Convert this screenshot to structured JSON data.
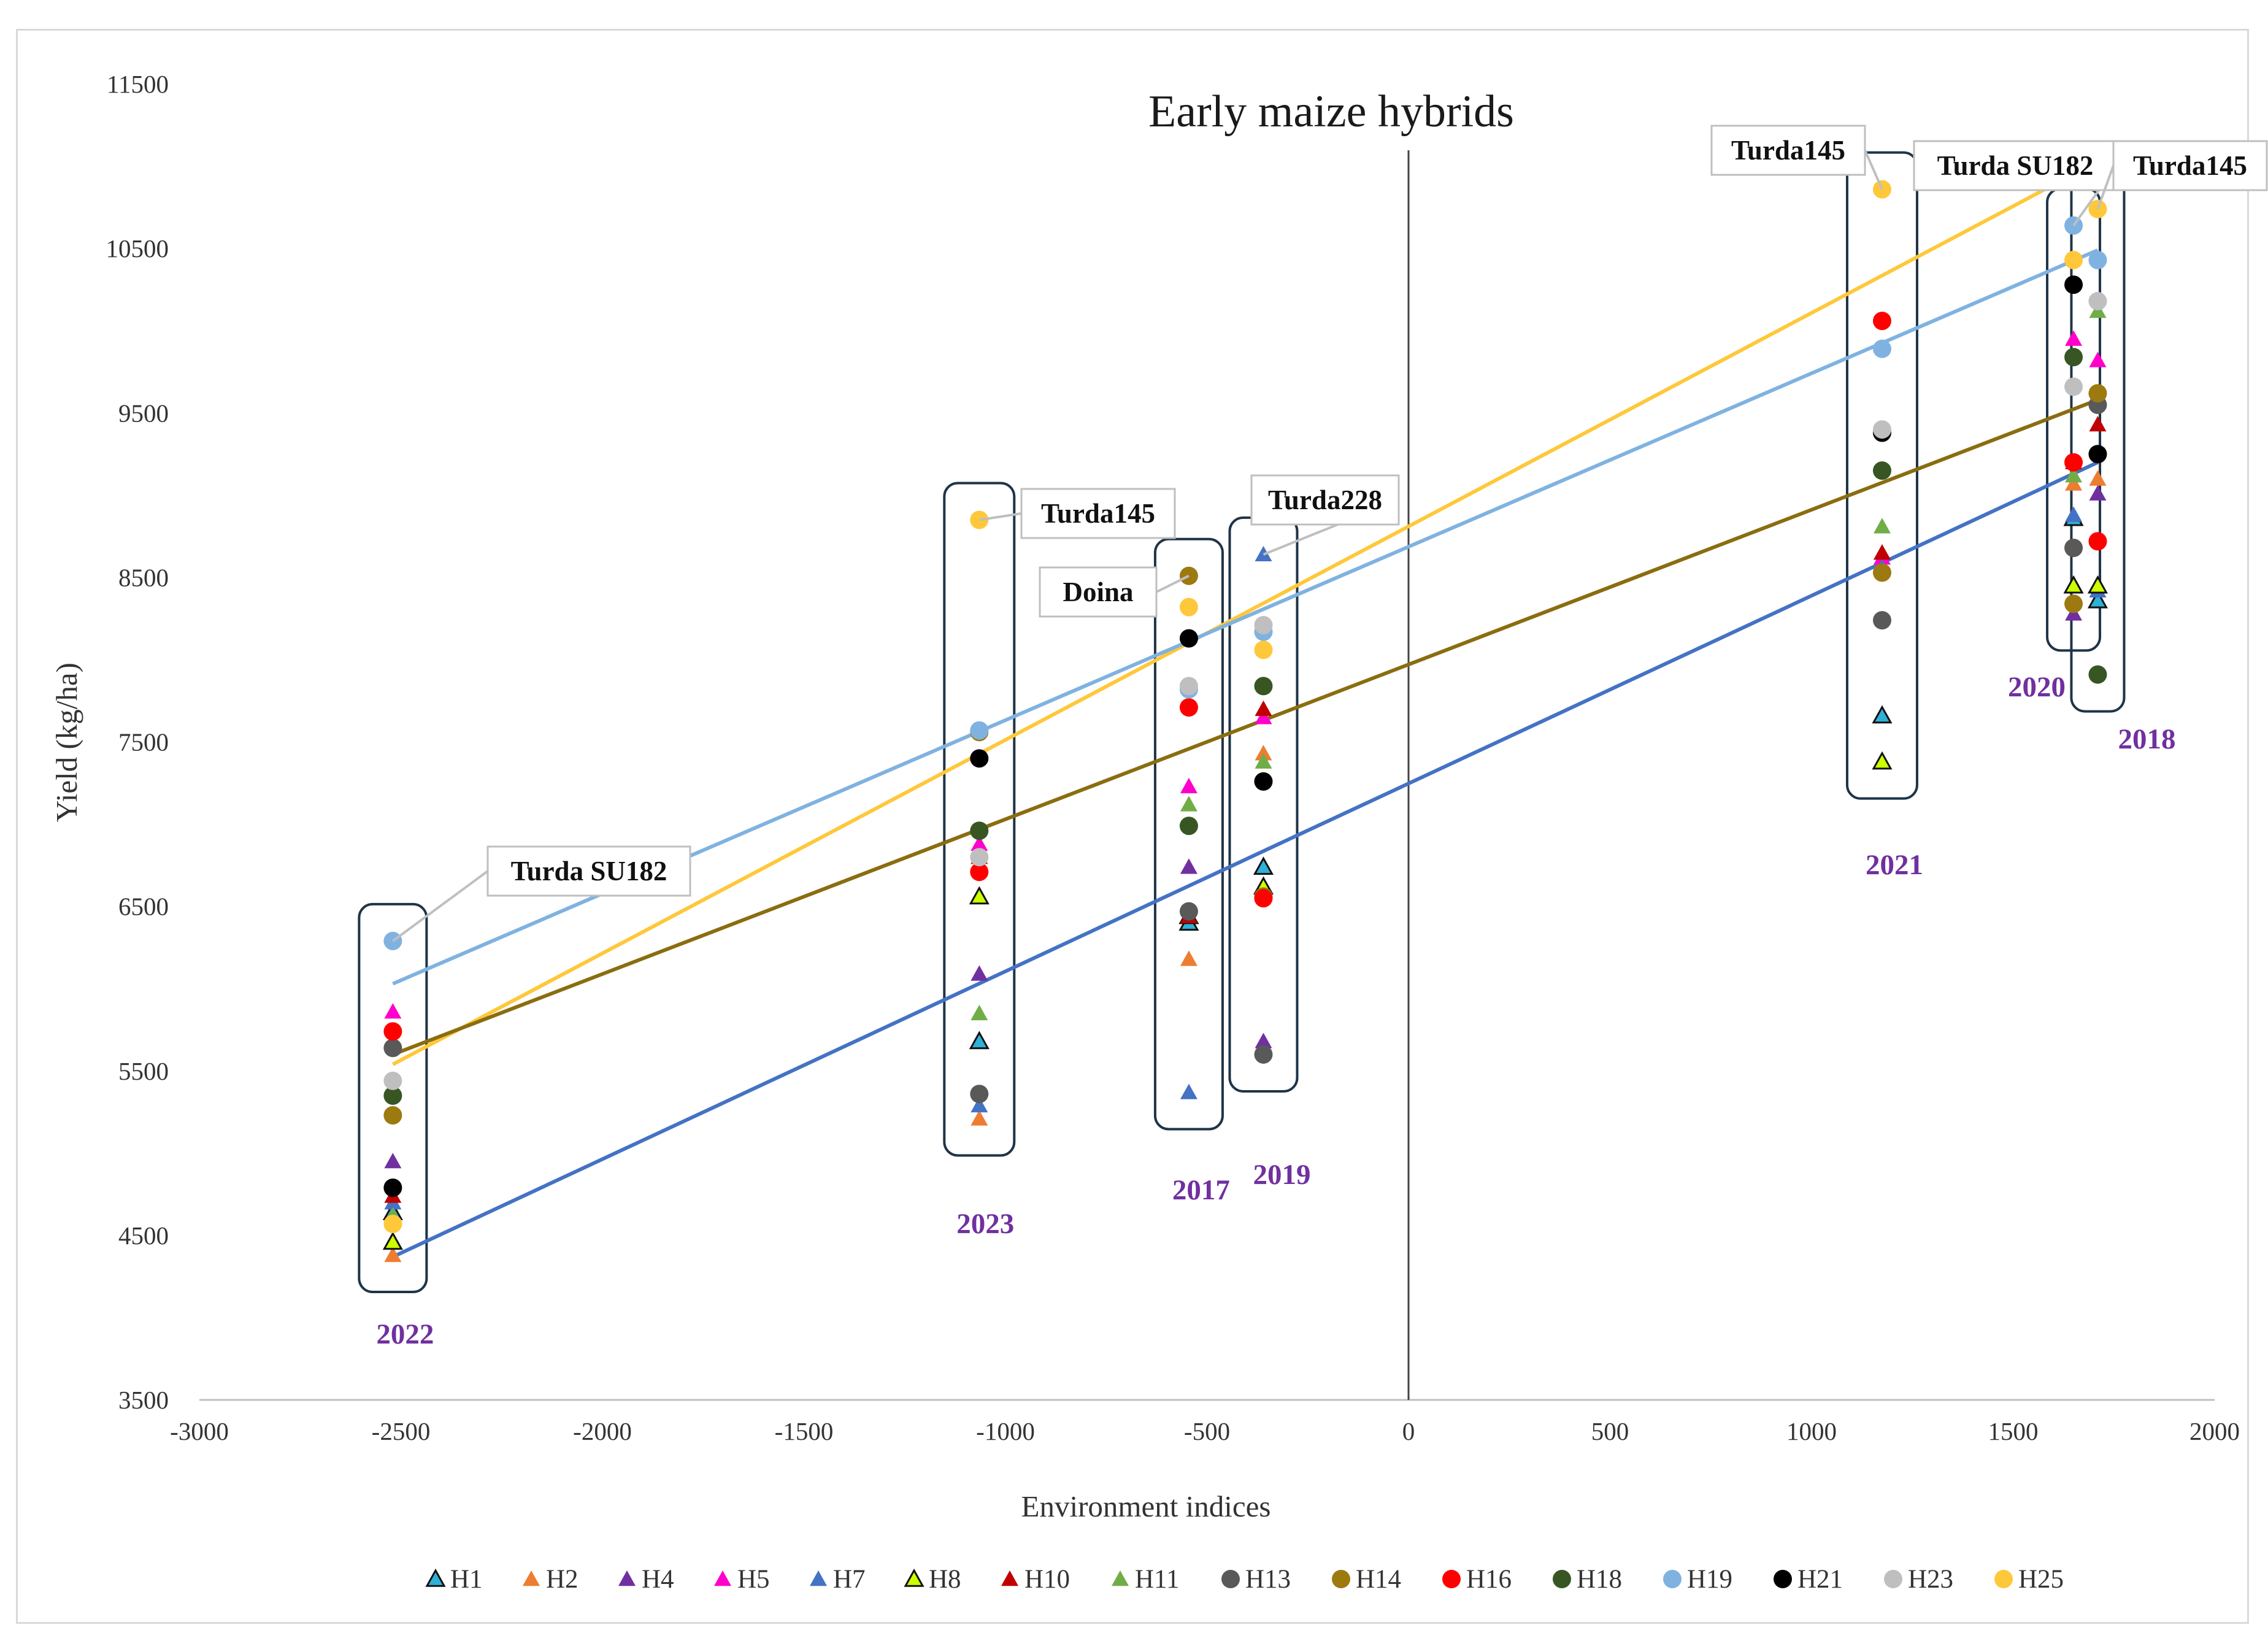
{
  "chart_data": {
    "type": "scatter",
    "title": "Early maize hybrids",
    "xlabel": "Environment indices",
    "ylabel": "Yield (kg/ha)",
    "xlim": [
      -3000,
      2000
    ],
    "ylim": [
      3500,
      11500
    ],
    "x_ticks": [
      -3000,
      -2500,
      -2000,
      -1500,
      -1000,
      -500,
      0,
      500,
      1000,
      1500,
      2000
    ],
    "y_ticks": [
      3500,
      4500,
      5500,
      6500,
      7500,
      8500,
      9500,
      10500,
      11500
    ],
    "grid": false,
    "legend_position": "bottom",
    "environments": [
      {
        "year": "2022",
        "x": -2520
      },
      {
        "year": "2023",
        "x": -1065
      },
      {
        "year": "2017",
        "x": -545
      },
      {
        "year": "2019",
        "x": -360
      },
      {
        "year": "2021",
        "x": 1175
      },
      {
        "year": "2020",
        "x": 1650
      },
      {
        "year": "2018",
        "x": 1710
      }
    ],
    "series": [
      {
        "name": "H1",
        "marker": "triangle-outline",
        "color": "#2eb0d8",
        "values": [
          4640,
          5680,
          6400,
          6740,
          7660,
          8860,
          8360
        ]
      },
      {
        "name": "H2",
        "marker": "triangle",
        "color": "#ed7d31",
        "values": [
          4380,
          5210,
          6180,
          7430,
          8570,
          9070,
          9100
        ]
      },
      {
        "name": "H4",
        "marker": "triangle",
        "color": "#7030a0",
        "values": [
          4950,
          6090,
          6740,
          5680,
          8650,
          8280,
          9010
        ]
      },
      {
        "name": "H5",
        "marker": "triangle",
        "color": "#ff00cc",
        "values": [
          5860,
          6880,
          7230,
          7650,
          8620,
          9950,
          9820
        ]
      },
      {
        "name": "H7",
        "marker": "triangle",
        "color": "#4472c4",
        "values": [
          4700,
          5290,
          5370,
          8640,
          8560,
          8880,
          8420
        ]
      },
      {
        "name": "H8",
        "marker": "triangle-outline",
        "color": "#ccff00",
        "values": [
          4460,
          6560,
          6440,
          6620,
          7380,
          8450,
          8450
        ]
      },
      {
        "name": "H10",
        "marker": "triangle",
        "color": "#c00000",
        "values": [
          4740,
          6800,
          6440,
          7700,
          8650,
          9200,
          9430
        ]
      },
      {
        "name": "H11",
        "marker": "triangle",
        "color": "#70ad47",
        "values": [
          4620,
          5850,
          7120,
          7380,
          8810,
          9120,
          10120
        ]
      },
      {
        "name": "H13",
        "marker": "circle",
        "color": "#595959",
        "values": [
          5640,
          5360,
          6470,
          5600,
          8240,
          8680,
          9550
        ]
      },
      {
        "name": "H14",
        "marker": "circle",
        "color": "#9c7a10",
        "values": [
          5230,
          7560,
          8510,
          6560,
          8530,
          8340,
          9620
        ]
      },
      {
        "name": "H16",
        "marker": "circle",
        "color": "#ff0000",
        "values": [
          5740,
          6710,
          7710,
          6550,
          10060,
          9200,
          8720
        ]
      },
      {
        "name": "H18",
        "marker": "circle",
        "color": "#375623",
        "values": [
          5350,
          6960,
          6990,
          7840,
          9150,
          9840,
          7910
        ]
      },
      {
        "name": "H19",
        "marker": "circle",
        "color": "#7fb2e0",
        "values": [
          6290,
          7570,
          7820,
          8170,
          9890,
          10640,
          10430
        ]
      },
      {
        "name": "H21",
        "marker": "circle",
        "color": "#000000",
        "values": [
          4790,
          7400,
          8130,
          7260,
          9380,
          10280,
          9250
        ]
      },
      {
        "name": "H23",
        "marker": "circle",
        "color": "#bfbfbf",
        "values": [
          5440,
          6800,
          7840,
          8210,
          9400,
          9660,
          10180
        ]
      },
      {
        "name": "H25",
        "marker": "circle",
        "color": "#ffc83a",
        "values": [
          4570,
          8850,
          8320,
          8060,
          10860,
          10430,
          10740
        ]
      }
    ],
    "trend_lines": [
      {
        "color": "#ffc83a",
        "x": [
          -2520,
          1710
        ],
        "y": [
          5540,
          11030
        ]
      },
      {
        "color": "#7fb2e0",
        "x": [
          -2520,
          1710
        ],
        "y": [
          6030,
          10490
        ]
      },
      {
        "color": "#8a6d10",
        "x": [
          -2520,
          1710
        ],
        "y": [
          5600,
          9580
        ]
      },
      {
        "color": "#4472c4",
        "x": [
          -2520,
          1710
        ],
        "y": [
          4370,
          9200
        ]
      }
    ],
    "callouts": [
      {
        "text": "Turda SU182",
        "series": "H19",
        "env": 0
      },
      {
        "text": "Turda145",
        "series": "H25",
        "env": 1
      },
      {
        "text": "Doina",
        "series": "H14",
        "env": 2
      },
      {
        "text": "Turda228",
        "series": "H7",
        "env": 3
      },
      {
        "text": "Turda145",
        "series": "H25",
        "env": 4
      },
      {
        "text": "Turda SU182",
        "series": "H19",
        "env": 5
      },
      {
        "text": "Turda145",
        "series": "H25",
        "env": 6
      }
    ]
  }
}
